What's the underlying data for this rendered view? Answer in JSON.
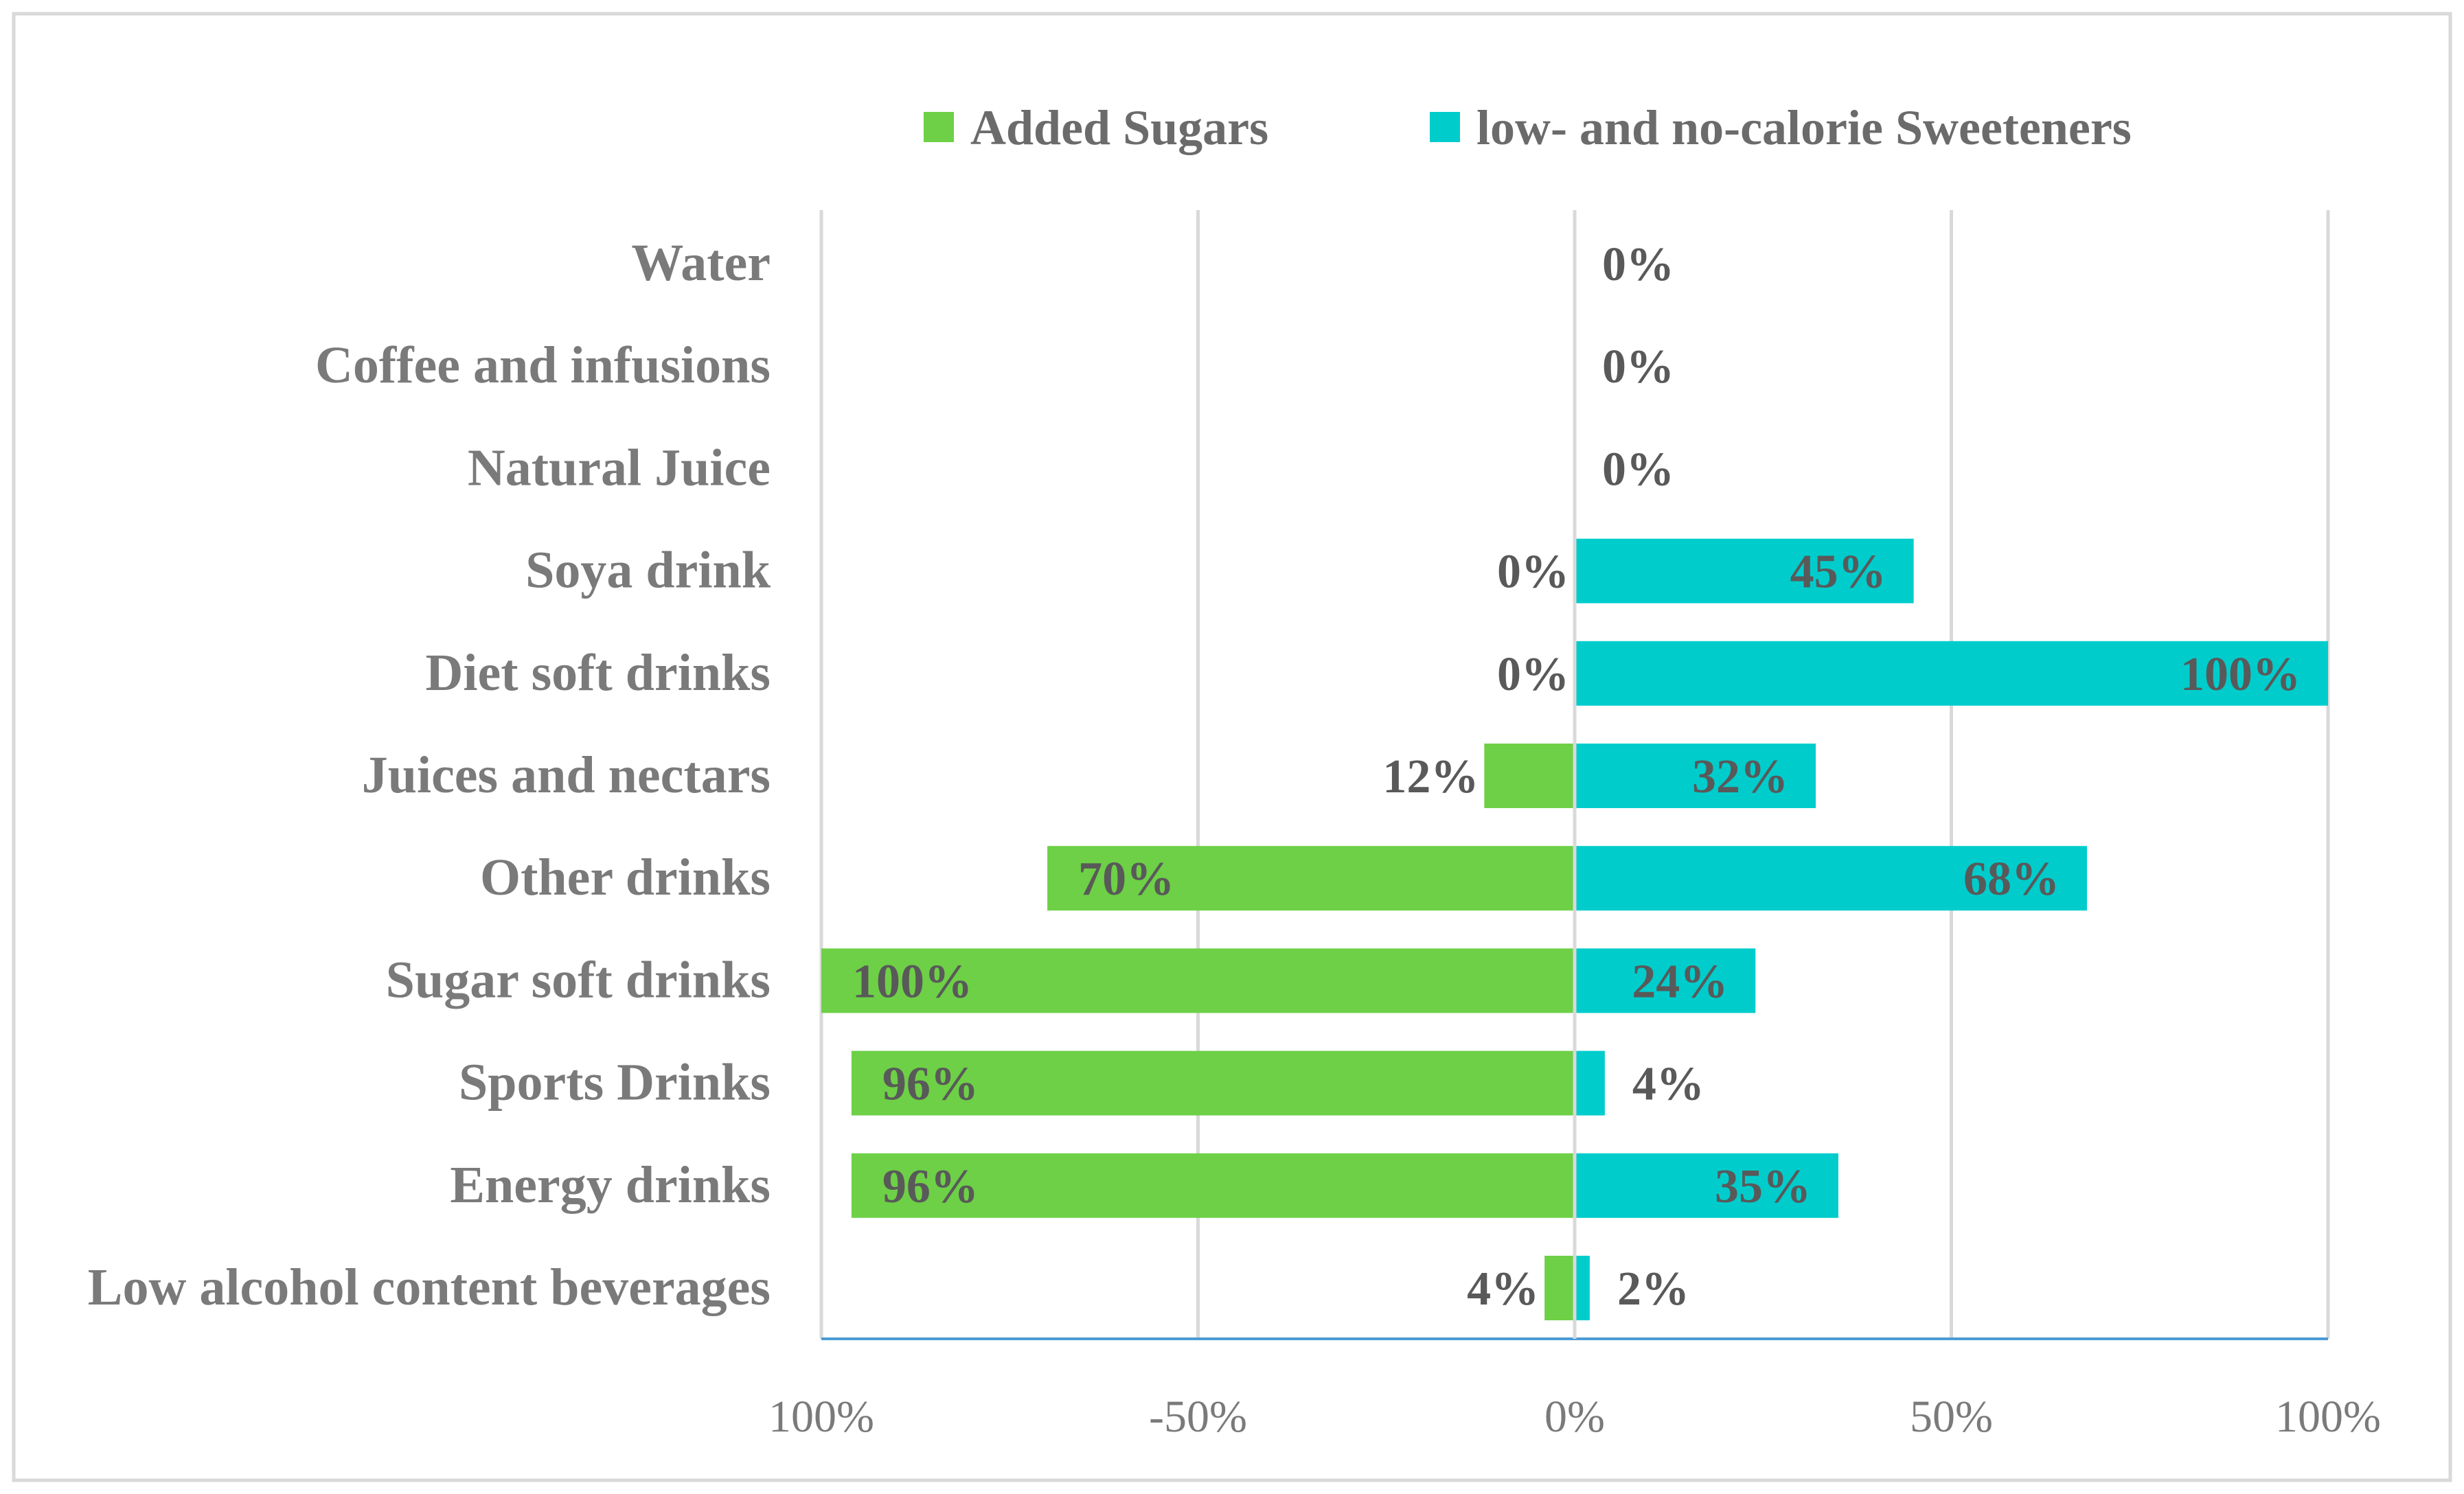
{
  "chart_data": {
    "type": "bar",
    "orientation": "horizontal-diverging",
    "title": "",
    "xlabel": "",
    "ylabel": "",
    "xlim": [
      -100,
      100
    ],
    "x_ticks": [
      -100,
      -50,
      0,
      50,
      100
    ],
    "x_tick_labels": [
      "100%",
      "-50%",
      "0%",
      "50%",
      "100%"
    ],
    "grid": true,
    "legend_position": "top",
    "categories": [
      "Water",
      "Coffee and infusions",
      "Natural Juice",
      "Soya drink",
      "Diet soft drinks",
      "Juices and nectars",
      "Other drinks",
      "Sugar soft drinks",
      "Sports Drinks",
      "Energy drinks",
      "Low alcohol content beverages"
    ],
    "series": [
      {
        "name": "Added Sugars",
        "direction": "left",
        "color": "#6dd046",
        "values": [
          0,
          0,
          0,
          0,
          0,
          12,
          70,
          100,
          96,
          96,
          4
        ],
        "labels": [
          "",
          "",
          "",
          "0%",
          "0%",
          "12%",
          "70%",
          "100%",
          "96%",
          "96%",
          "4%"
        ]
      },
      {
        "name": "low- and no-calorie Sweeteners",
        "direction": "right",
        "color": "#00cccc",
        "values": [
          0,
          0,
          0,
          45,
          100,
          32,
          68,
          24,
          4,
          35,
          2
        ],
        "labels": [
          "0%",
          "0%",
          "0%",
          "45%",
          "100%",
          "32%",
          "68%",
          "24%",
          "4%",
          "35%",
          "2%"
        ]
      }
    ]
  },
  "colors": {
    "grid": "#d9d9d9",
    "axis": "#4a9bd6",
    "frame": "#d9d9d9"
  }
}
